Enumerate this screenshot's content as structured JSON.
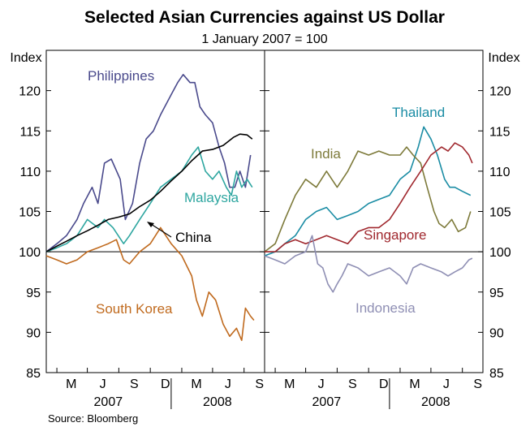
{
  "title": "Selected Asian Currencies against US Dollar",
  "subtitle": "1 January 2007 = 100",
  "source": "Source: Bloomberg",
  "chart_data": {
    "type": "line",
    "y_unit_label": "Index",
    "ylim": [
      85,
      125
    ],
    "y_ticks": [
      85,
      90,
      95,
      100,
      105,
      110,
      115,
      120
    ],
    "x_ticks": [
      "M",
      "J",
      "S",
      "D",
      "M",
      "J",
      "S"
    ],
    "x_years": [
      "2007",
      "2008"
    ],
    "grid": false,
    "reference_line": 100,
    "panels": [
      {
        "id": "left",
        "series": [
          {
            "name": "Philippines",
            "color": "#4a4a8c",
            "points": [
              [
                "2007-01-01",
                100
              ],
              [
                "2007-02-01",
                101
              ],
              [
                "2007-03-01",
                102
              ],
              [
                "2007-04-01",
                104
              ],
              [
                "2007-04-20",
                106
              ],
              [
                "2007-05-15",
                108
              ],
              [
                "2007-06-01",
                106
              ],
              [
                "2007-06-20",
                111
              ],
              [
                "2007-07-10",
                111.5
              ],
              [
                "2007-08-05",
                109
              ],
              [
                "2007-08-20",
                104
              ],
              [
                "2007-09-10",
                106
              ],
              [
                "2007-10-01",
                111
              ],
              [
                "2007-10-20",
                114
              ],
              [
                "2007-11-10",
                115
              ],
              [
                "2007-12-01",
                117
              ],
              [
                "2008-01-01",
                119.5
              ],
              [
                "2008-01-20",
                121
              ],
              [
                "2008-02-05",
                122
              ],
              [
                "2008-02-25",
                121
              ],
              [
                "2008-03-10",
                121
              ],
              [
                "2008-03-25",
                118
              ],
              [
                "2008-04-10",
                117
              ],
              [
                "2008-05-01",
                116
              ],
              [
                "2008-05-20",
                113
              ],
              [
                "2008-06-05",
                111
              ],
              [
                "2008-06-20",
                108
              ],
              [
                "2008-07-05",
                108
              ],
              [
                "2008-07-20",
                110
              ],
              [
                "2008-08-05",
                108
              ],
              [
                "2008-08-20",
                112
              ]
            ]
          },
          {
            "name": "Malaysia",
            "color": "#2ea6a0",
            "points": [
              [
                "2007-01-01",
                100
              ],
              [
                "2007-02-01",
                100.5
              ],
              [
                "2007-03-01",
                101
              ],
              [
                "2007-04-01",
                102
              ],
              [
                "2007-05-01",
                104
              ],
              [
                "2007-06-01",
                103
              ],
              [
                "2007-06-20",
                104
              ],
              [
                "2007-07-15",
                103
              ],
              [
                "2007-08-15",
                101
              ],
              [
                "2007-09-01",
                102
              ],
              [
                "2007-10-01",
                104
              ],
              [
                "2007-11-01",
                106
              ],
              [
                "2007-12-01",
                108
              ],
              [
                "2008-01-01",
                109
              ],
              [
                "2008-02-01",
                110
              ],
              [
                "2008-03-01",
                112
              ],
              [
                "2008-03-20",
                113
              ],
              [
                "2008-04-10",
                110
              ],
              [
                "2008-05-01",
                109
              ],
              [
                "2008-05-20",
                110
              ],
              [
                "2008-06-10",
                108
              ],
              [
                "2008-06-25",
                107
              ],
              [
                "2008-07-10",
                110
              ],
              [
                "2008-07-25",
                108
              ],
              [
                "2008-08-10",
                109
              ],
              [
                "2008-08-25",
                108
              ]
            ]
          },
          {
            "name": "China",
            "color": "#000000",
            "points": [
              [
                "2007-01-01",
                100
              ],
              [
                "2007-02-01",
                100.7
              ],
              [
                "2007-03-01",
                101.3
              ],
              [
                "2007-04-01",
                102
              ],
              [
                "2007-05-01",
                102.6
              ],
              [
                "2007-06-01",
                103.3
              ],
              [
                "2007-07-01",
                104
              ],
              [
                "2007-08-01",
                104.3
              ],
              [
                "2007-09-01",
                104.7
              ],
              [
                "2007-10-01",
                105.6
              ],
              [
                "2007-11-01",
                106.4
              ],
              [
                "2007-12-01",
                107.5
              ],
              [
                "2008-01-01",
                108.8
              ],
              [
                "2008-02-01",
                110
              ],
              [
                "2008-03-01",
                111.3
              ],
              [
                "2008-04-01",
                112.5
              ],
              [
                "2008-05-01",
                112.7
              ],
              [
                "2008-06-01",
                113.2
              ],
              [
                "2008-07-01",
                114.2
              ],
              [
                "2008-07-20",
                114.6
              ],
              [
                "2008-08-10",
                114.5
              ],
              [
                "2008-08-25",
                114
              ]
            ]
          },
          {
            "name": "South Korea",
            "color": "#c06a1e",
            "points": [
              [
                "2007-01-01",
                99.5
              ],
              [
                "2007-02-01",
                99
              ],
              [
                "2007-03-01",
                98.5
              ],
              [
                "2007-04-01",
                99
              ],
              [
                "2007-05-01",
                100
              ],
              [
                "2007-06-01",
                100.5
              ],
              [
                "2007-07-01",
                101
              ],
              [
                "2007-07-25",
                101.5
              ],
              [
                "2007-08-15",
                99
              ],
              [
                "2007-09-01",
                98.5
              ],
              [
                "2007-10-01",
                100
              ],
              [
                "2007-11-01",
                101
              ],
              [
                "2007-12-01",
                103
              ],
              [
                "2008-01-01",
                101
              ],
              [
                "2008-02-01",
                99.5
              ],
              [
                "2008-03-01",
                97
              ],
              [
                "2008-03-15",
                94
              ],
              [
                "2008-04-01",
                92
              ],
              [
                "2008-04-20",
                95
              ],
              [
                "2008-05-10",
                94
              ],
              [
                "2008-06-01",
                91
              ],
              [
                "2008-06-20",
                89.5
              ],
              [
                "2008-07-10",
                90.5
              ],
              [
                "2008-07-25",
                89
              ],
              [
                "2008-08-05",
                93
              ],
              [
                "2008-08-20",
                92
              ],
              [
                "2008-08-30",
                91.5
              ]
            ]
          }
        ],
        "labels": [
          "Philippines",
          "Malaysia",
          "China",
          "South Korea"
        ]
      },
      {
        "id": "right",
        "series": [
          {
            "name": "Thailand",
            "color": "#1a8ca4",
            "points": [
              [
                "2007-01-01",
                99.5
              ],
              [
                "2007-02-01",
                100
              ],
              [
                "2007-03-01",
                101
              ],
              [
                "2007-04-01",
                102
              ],
              [
                "2007-05-01",
                104
              ],
              [
                "2007-06-01",
                105
              ],
              [
                "2007-07-01",
                105.5
              ],
              [
                "2007-08-01",
                104
              ],
              [
                "2007-09-01",
                104.5
              ],
              [
                "2007-10-01",
                105
              ],
              [
                "2007-11-01",
                106
              ],
              [
                "2007-12-01",
                106.5
              ],
              [
                "2008-01-01",
                107
              ],
              [
                "2008-02-01",
                109
              ],
              [
                "2008-03-01",
                110
              ],
              [
                "2008-03-25",
                113
              ],
              [
                "2008-04-10",
                115.5
              ],
              [
                "2008-05-01",
                114
              ],
              [
                "2008-05-20",
                112
              ],
              [
                "2008-06-10",
                109
              ],
              [
                "2008-06-25",
                108
              ],
              [
                "2008-07-10",
                108
              ],
              [
                "2008-08-01",
                107.5
              ],
              [
                "2008-08-25",
                107
              ]
            ]
          },
          {
            "name": "India",
            "color": "#7d7a3a",
            "points": [
              [
                "2007-01-01",
                100
              ],
              [
                "2007-02-01",
                101
              ],
              [
                "2007-03-01",
                104
              ],
              [
                "2007-04-01",
                107
              ],
              [
                "2007-05-01",
                109
              ],
              [
                "2007-06-01",
                108
              ],
              [
                "2007-07-01",
                110
              ],
              [
                "2007-08-01",
                108
              ],
              [
                "2007-09-01",
                110
              ],
              [
                "2007-10-01",
                112.5
              ],
              [
                "2007-11-01",
                112
              ],
              [
                "2007-12-01",
                112.5
              ],
              [
                "2008-01-01",
                112
              ],
              [
                "2008-02-01",
                112
              ],
              [
                "2008-02-20",
                113
              ],
              [
                "2008-03-10",
                112
              ],
              [
                "2008-04-01",
                111
              ],
              [
                "2008-04-20",
                108
              ],
              [
                "2008-05-10",
                105
              ],
              [
                "2008-05-25",
                103.5
              ],
              [
                "2008-06-10",
                103
              ],
              [
                "2008-07-01",
                104
              ],
              [
                "2008-07-20",
                102.5
              ],
              [
                "2008-08-10",
                103
              ],
              [
                "2008-08-25",
                105
              ]
            ]
          },
          {
            "name": "Singapore",
            "color": "#a0282e",
            "points": [
              [
                "2007-01-01",
                100
              ],
              [
                "2007-02-01",
                100
              ],
              [
                "2007-03-01",
                101
              ],
              [
                "2007-04-01",
                101.5
              ],
              [
                "2007-05-01",
                101
              ],
              [
                "2007-06-01",
                101.5
              ],
              [
                "2007-07-01",
                102
              ],
              [
                "2007-08-01",
                101.5
              ],
              [
                "2007-09-01",
                101
              ],
              [
                "2007-10-01",
                102.5
              ],
              [
                "2007-11-01",
                103
              ],
              [
                "2007-12-01",
                103
              ],
              [
                "2008-01-01",
                104
              ],
              [
                "2008-02-01",
                106
              ],
              [
                "2008-03-01",
                108
              ],
              [
                "2008-04-01",
                110
              ],
              [
                "2008-05-01",
                112
              ],
              [
                "2008-06-01",
                113
              ],
              [
                "2008-06-20",
                112.5
              ],
              [
                "2008-07-10",
                113.5
              ],
              [
                "2008-08-01",
                113
              ],
              [
                "2008-08-20",
                112
              ],
              [
                "2008-08-30",
                111
              ]
            ]
          },
          {
            "name": "Indonesia",
            "color": "#8f8fb4",
            "points": [
              [
                "2007-01-01",
                99.5
              ],
              [
                "2007-02-01",
                99
              ],
              [
                "2007-03-01",
                98.5
              ],
              [
                "2007-04-01",
                99.5
              ],
              [
                "2007-05-01",
                100
              ],
              [
                "2007-05-20",
                102
              ],
              [
                "2007-06-05",
                98.5
              ],
              [
                "2007-06-20",
                98
              ],
              [
                "2007-07-05",
                96
              ],
              [
                "2007-07-20",
                95
              ],
              [
                "2007-08-01",
                96
              ],
              [
                "2007-08-15",
                97
              ],
              [
                "2007-09-01",
                98.5
              ],
              [
                "2007-10-01",
                98
              ],
              [
                "2007-11-01",
                97
              ],
              [
                "2007-12-01",
                97.5
              ],
              [
                "2008-01-01",
                98
              ],
              [
                "2008-02-01",
                97
              ],
              [
                "2008-02-20",
                96
              ],
              [
                "2008-03-10",
                98
              ],
              [
                "2008-04-01",
                98.5
              ],
              [
                "2008-05-01",
                98
              ],
              [
                "2008-06-01",
                97.5
              ],
              [
                "2008-06-20",
                97
              ],
              [
                "2008-07-10",
                97.5
              ],
              [
                "2008-08-01",
                98
              ],
              [
                "2008-08-20",
                99
              ],
              [
                "2008-08-30",
                99.2
              ]
            ]
          }
        ],
        "labels": [
          "Thailand",
          "India",
          "Singapore",
          "Indonesia"
        ]
      }
    ]
  }
}
